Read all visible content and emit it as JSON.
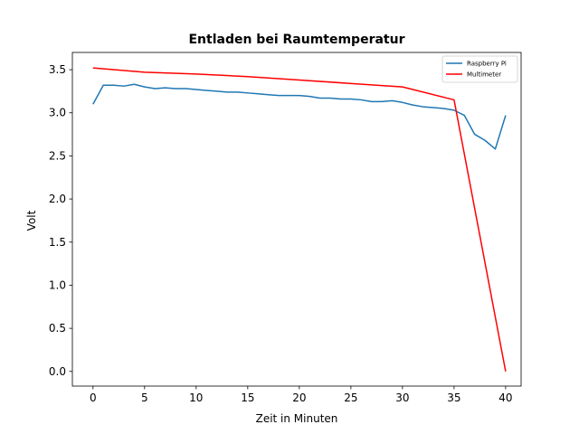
{
  "chart_data": {
    "type": "line",
    "title": "Entladen bei Raumtemperatur",
    "xlabel": "Zeit in Minuten",
    "ylabel": "Volt",
    "xlim": [
      -2,
      41.5
    ],
    "ylim": [
      -0.17,
      3.7
    ],
    "xticks": [
      0,
      5,
      10,
      15,
      20,
      25,
      30,
      35,
      40
    ],
    "xtick_labels": [
      "0",
      "5",
      "10",
      "15",
      "20",
      "25",
      "30",
      "35",
      "40"
    ],
    "yticks": [
      0.0,
      0.5,
      1.0,
      1.5,
      2.0,
      2.5,
      3.0,
      3.5
    ],
    "ytick_labels": [
      "0.0",
      "0.5",
      "1.0",
      "1.5",
      "2.0",
      "2.5",
      "3.0",
      "3.5"
    ],
    "grid": false,
    "legend_position": "top-right",
    "series": [
      {
        "name": "Raspberry Pi",
        "color": "#1f77b4",
        "x": [
          0,
          1,
          2,
          3,
          4,
          5,
          6,
          7,
          8,
          9,
          10,
          11,
          12,
          13,
          14,
          15,
          16,
          17,
          18,
          19,
          20,
          21,
          22,
          23,
          24,
          25,
          26,
          27,
          28,
          29,
          30,
          31,
          32,
          33,
          34,
          35,
          36,
          37,
          38,
          39,
          40
        ],
        "y": [
          3.1,
          3.32,
          3.32,
          3.31,
          3.33,
          3.3,
          3.28,
          3.29,
          3.28,
          3.28,
          3.27,
          3.26,
          3.25,
          3.24,
          3.24,
          3.23,
          3.22,
          3.21,
          3.2,
          3.2,
          3.2,
          3.19,
          3.17,
          3.17,
          3.16,
          3.16,
          3.15,
          3.13,
          3.13,
          3.14,
          3.12,
          3.09,
          3.07,
          3.06,
          3.05,
          3.03,
          2.97,
          2.75,
          2.68,
          2.58,
          2.97
        ]
      },
      {
        "name": "Multimeter",
        "color": "#ff0000",
        "x": [
          0,
          5,
          10,
          15,
          20,
          25,
          30,
          35,
          40
        ],
        "y": [
          3.52,
          3.47,
          3.45,
          3.42,
          3.38,
          3.34,
          3.3,
          3.15,
          0.0
        ]
      }
    ]
  }
}
